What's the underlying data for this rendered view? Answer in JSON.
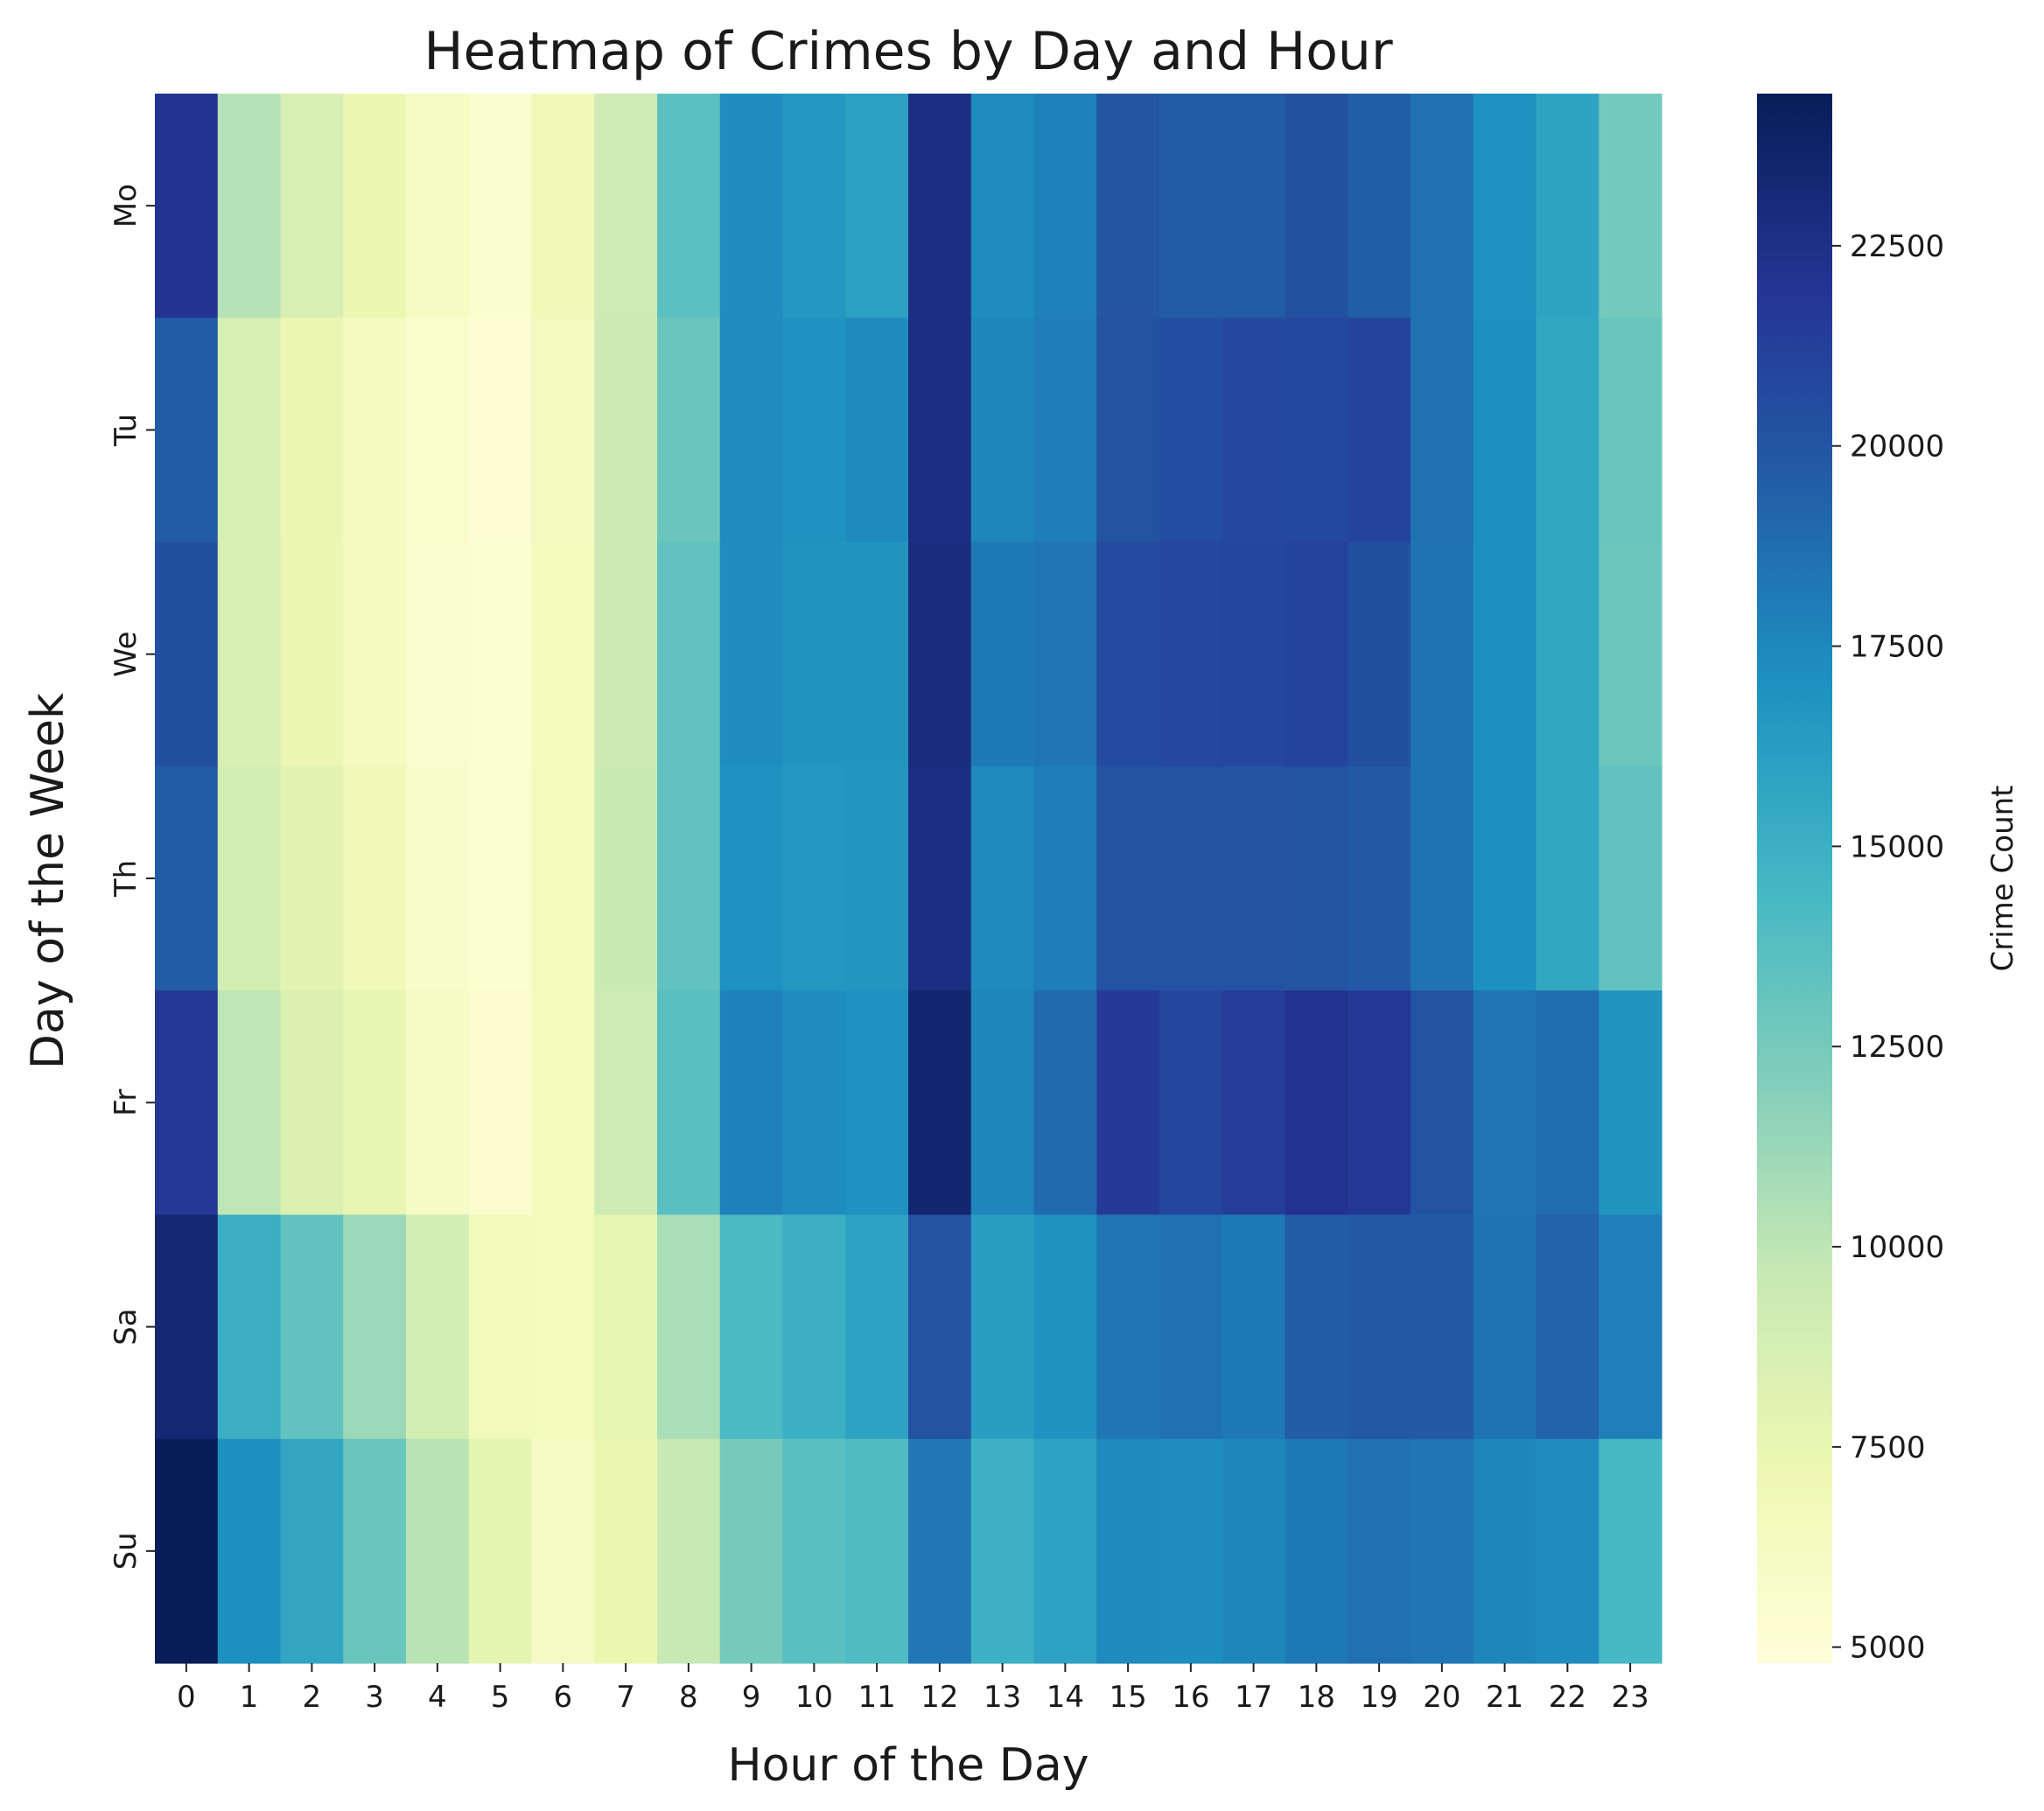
{
  "chart_data": {
    "type": "heatmap",
    "title": "Heatmap of Crimes by Day and Hour",
    "xlabel": "Hour of the Day",
    "ylabel": "Day of the Week",
    "x": [
      "0",
      "1",
      "2",
      "3",
      "4",
      "5",
      "6",
      "7",
      "8",
      "9",
      "10",
      "11",
      "12",
      "13",
      "14",
      "15",
      "16",
      "17",
      "18",
      "19",
      "20",
      "21",
      "22",
      "23"
    ],
    "y": [
      "Mo",
      "Tu",
      "We",
      "Th",
      "Fr",
      "Sa",
      "Su"
    ],
    "values": [
      [
        22100,
        10300,
        8700,
        7300,
        6200,
        5500,
        6800,
        9300,
        13500,
        17200,
        16600,
        16000,
        22700,
        17300,
        17800,
        20000,
        19600,
        19700,
        20300,
        19500,
        18600,
        17000,
        15800,
        12600
      ],
      [
        19600,
        8700,
        7400,
        6300,
        5600,
        5100,
        6400,
        9400,
        13000,
        17300,
        17000,
        17400,
        22700,
        17600,
        18000,
        20200,
        20500,
        20800,
        20700,
        21000,
        18600,
        17100,
        15600,
        13000
      ],
      [
        20400,
        8700,
        7300,
        6300,
        5500,
        5300,
        6600,
        9400,
        13300,
        17200,
        16800,
        16800,
        22800,
        18200,
        18400,
        20600,
        20800,
        20900,
        21100,
        20400,
        18500,
        17100,
        15600,
        12900
      ],
      [
        19600,
        8900,
        7900,
        6800,
        5700,
        5300,
        6500,
        9500,
        13300,
        17000,
        16600,
        16700,
        22700,
        17400,
        18000,
        20200,
        20200,
        20200,
        20100,
        19800,
        18500,
        17100,
        15600,
        13300
      ],
      [
        21800,
        10000,
        8400,
        7500,
        6100,
        5400,
        6600,
        9300,
        13600,
        17800,
        17200,
        17000,
        23400,
        17600,
        18900,
        21600,
        20900,
        21400,
        22200,
        21800,
        20200,
        18400,
        18800,
        16800
      ],
      [
        23300,
        15100,
        13300,
        11200,
        8900,
        6700,
        6500,
        7700,
        10700,
        14200,
        15000,
        15900,
        20200,
        16200,
        16900,
        18400,
        18600,
        18200,
        19700,
        19800,
        19800,
        18500,
        19300,
        17900
      ],
      [
        24400,
        17100,
        15700,
        13000,
        10200,
        7800,
        6100,
        7400,
        9700,
        12500,
        13600,
        14000,
        18300,
        14900,
        15900,
        17400,
        17200,
        17600,
        18200,
        18600,
        18400,
        17600,
        17300,
        14400
      ]
    ],
    "colorbar": {
      "label": "Crime Count",
      "vmin": 4800,
      "vmax": 24400,
      "ticks": [
        "5000",
        "7500",
        "10000",
        "12500",
        "15000",
        "17500",
        "20000",
        "22500"
      ],
      "colormap": "YlGnBu",
      "stops": [
        "#ffffd9",
        "#edf8b1",
        "#c7e9b4",
        "#7fcdbb",
        "#41b6c4",
        "#1d91c0",
        "#225ea8",
        "#253494",
        "#081d58"
      ]
    },
    "grid": false,
    "legend": "colorbar-right"
  }
}
